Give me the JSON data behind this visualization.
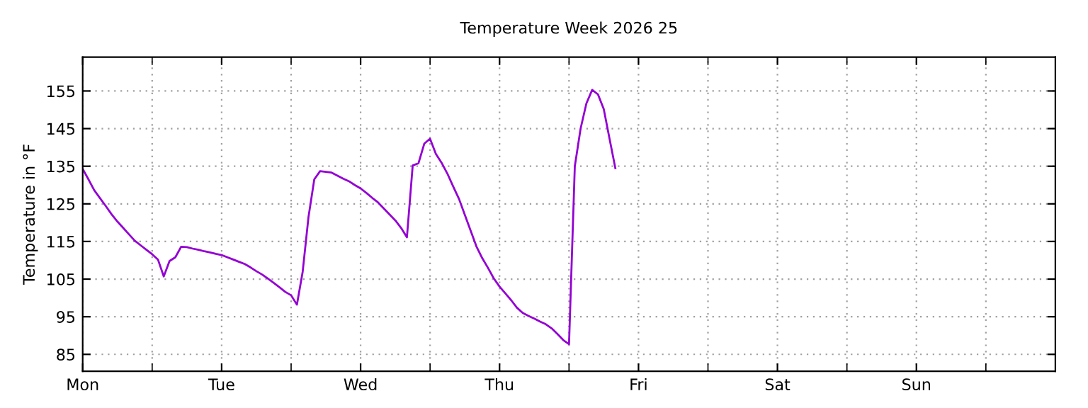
{
  "chart_data": {
    "type": "line",
    "title": "Temperature Week 2026 25",
    "ylabel": "Temperature in °F",
    "categories": [
      "Mon",
      null,
      null,
      null,
      null,
      null,
      null,
      null,
      null,
      null,
      null,
      null,
      null,
      null,
      null,
      null,
      null,
      null,
      null,
      null,
      null,
      null,
      null,
      null,
      "Tue",
      null,
      null,
      null,
      null,
      null,
      null,
      null,
      null,
      null,
      null,
      null,
      null,
      null,
      null,
      null,
      null,
      null,
      null,
      null,
      null,
      null,
      null,
      null,
      "Wed",
      null,
      null,
      null,
      null,
      null,
      null,
      null,
      null,
      null,
      null,
      null,
      null,
      null,
      null,
      null,
      null,
      null,
      null,
      null,
      null,
      null,
      null,
      null,
      "Thu",
      null,
      null,
      null,
      null,
      null,
      null,
      null,
      null,
      null,
      null,
      null,
      null,
      null,
      null,
      null,
      null,
      null,
      null,
      null,
      null,
      null,
      null,
      null,
      "Fri",
      null,
      null,
      null,
      null,
      null,
      null,
      null,
      null,
      null,
      null,
      null,
      null,
      null,
      null,
      null,
      null,
      null,
      null,
      null,
      null,
      null,
      null,
      null,
      "Sat",
      null,
      null,
      null,
      null,
      null,
      null,
      null,
      null,
      null,
      null,
      null,
      null,
      null,
      null,
      null,
      null,
      null,
      null,
      null,
      null,
      null,
      null,
      null,
      "Sun",
      null,
      null,
      null,
      null,
      null,
      null,
      null,
      null,
      null,
      null,
      null,
      null,
      null,
      null,
      null,
      null,
      null,
      null,
      null,
      null,
      null,
      null,
      null
    ],
    "series": [
      {
        "color": "#9400d3",
        "values": [
          134.3,
          131.5,
          128.6,
          126.5,
          124.4,
          122.2,
          120.3,
          118.6,
          116.9,
          115.2,
          114.0,
          112.8,
          111.6,
          110.2,
          105.7,
          109.8,
          110.8,
          113.6,
          113.5,
          113.1,
          112.8,
          112.4,
          112.1,
          111.7,
          111.4,
          110.8,
          110.2,
          109.6,
          109.0,
          108.1,
          107.1,
          106.2,
          105.1,
          104.0,
          102.8,
          101.6,
          100.7,
          98.2,
          107.0,
          121.5,
          131.5,
          133.7,
          133.5,
          133.3,
          132.5,
          131.7,
          131.0,
          130.0,
          129.1,
          127.9,
          126.6,
          125.4,
          123.8,
          122.2,
          120.6,
          118.6,
          116.1,
          135.2,
          135.8,
          141.0,
          142.3,
          138.3,
          135.9,
          133.0,
          129.6,
          126.3,
          122.1,
          117.9,
          113.7,
          110.6,
          108.0,
          105.2,
          103.0,
          101.2,
          99.4,
          97.4,
          96.0,
          95.2,
          94.5,
          93.7,
          93.0,
          91.9,
          90.4,
          88.8,
          87.7,
          135.0,
          145.0,
          151.7,
          155.3,
          154.1,
          150.2,
          142.3,
          134.5,
          null,
          null,
          null,
          null,
          null,
          null,
          null,
          null,
          null,
          null,
          null,
          null,
          null,
          null,
          null,
          null,
          null,
          null,
          null,
          null,
          null,
          null,
          null,
          null,
          null,
          null,
          null,
          null,
          null,
          null,
          null,
          null,
          null,
          null,
          null,
          null,
          null,
          null,
          null,
          null,
          null,
          null,
          null,
          null,
          null,
          null,
          null,
          null,
          null,
          null,
          null,
          null,
          null,
          null,
          null,
          null,
          null,
          null,
          null,
          null,
          null,
          null,
          null,
          null,
          null,
          null,
          null,
          null,
          null,
          null,
          null,
          null,
          null,
          null,
          null
        ]
      }
    ],
    "ylim": [
      80.5,
      164
    ],
    "yticks": [
      85,
      95,
      105,
      115,
      125,
      135,
      145,
      155
    ],
    "grid": true,
    "line_style": "solid",
    "marker": "none"
  }
}
